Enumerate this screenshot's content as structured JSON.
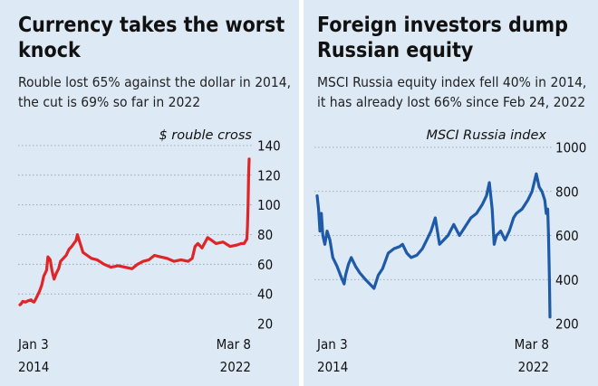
{
  "left": {
    "title": "Currency takes the worst knock",
    "subtitle": "Rouble lost 65% against the dollar in 2014, the cut is 69% so far in 2022"
  },
  "right": {
    "title": "Foreign investors dump Russian equity",
    "subtitle": "MSCI Russia equity index fell 40% in 2014, it has already lost 66% since Feb 24, 2022"
  },
  "colors": {
    "panel_bg": "#dde9f5",
    "rouble_line": "#e02527",
    "msci_line": "#1e5aa8",
    "grid": "#8a9aaa"
  },
  "chart_data": [
    {
      "type": "line",
      "ylabel": "$ rouble cross",
      "y_axis": "right",
      "ylim": [
        20,
        140
      ],
      "yticks": [
        20,
        40,
        60,
        80,
        100,
        120,
        140
      ],
      "x_tick_labels": [
        [
          "Jan 3",
          "2014"
        ],
        [
          "Mar 8",
          "2022"
        ]
      ],
      "x": [
        2014.0,
        2014.05,
        2014.1,
        2014.2,
        2014.3,
        2014.4,
        2014.45,
        2014.5,
        2014.55,
        2014.6,
        2014.7,
        2014.78,
        2014.85,
        2014.95,
        2015.0,
        2015.08,
        2015.15,
        2015.22,
        2015.3,
        2015.38,
        2015.45,
        2015.55,
        2015.65,
        2015.75,
        2015.85,
        2016.0,
        2016.05,
        2016.15,
        2016.25,
        2016.4,
        2016.55,
        2016.75,
        2017.0,
        2017.25,
        2017.5,
        2017.75,
        2018.0,
        2018.2,
        2018.4,
        2018.6,
        2018.8,
        2019.0,
        2019.25,
        2019.5,
        2019.75,
        2020.0,
        2020.15,
        2020.25,
        2020.35,
        2020.5,
        2020.7,
        2020.85,
        2021.0,
        2021.25,
        2021.5,
        2021.75,
        2021.9,
        2022.0,
        2022.1,
        2022.12,
        2022.14,
        2022.16,
        2022.18
      ],
      "series": [
        {
          "values": [
            32.7,
            33.5,
            35,
            34.5,
            35.5,
            36,
            35,
            34.5,
            36,
            38,
            42,
            46,
            52,
            56,
            65,
            63,
            55,
            50,
            54,
            57,
            62,
            64,
            66,
            70,
            72,
            76,
            80,
            74,
            68,
            66,
            64,
            63,
            60,
            58,
            59,
            58,
            57,
            60,
            62,
            63,
            66,
            65,
            64,
            62,
            63,
            62,
            64,
            72,
            74,
            71,
            78,
            76,
            74,
            75,
            72,
            73,
            74,
            74,
            77,
            85,
            100,
            120,
            131
          ]
        }
      ]
    },
    {
      "type": "line",
      "ylabel": "MSCI Russia index",
      "y_axis": "right",
      "ylim": [
        200,
        1000
      ],
      "yticks": [
        200,
        400,
        600,
        800,
        1000
      ],
      "x_tick_labels": [
        [
          "Jan 3",
          "2014"
        ],
        [
          "Mar 8",
          "2022"
        ]
      ],
      "x": [
        2014.0,
        2014.05,
        2014.1,
        2014.15,
        2014.2,
        2014.27,
        2014.35,
        2014.45,
        2014.55,
        2014.7,
        2014.85,
        2014.95,
        2015.0,
        2015.1,
        2015.2,
        2015.35,
        2015.5,
        2015.7,
        2015.85,
        2016.0,
        2016.15,
        2016.3,
        2016.5,
        2016.7,
        2016.9,
        2017.0,
        2017.15,
        2017.3,
        2017.5,
        2017.7,
        2017.85,
        2018.0,
        2018.15,
        2018.3,
        2018.45,
        2018.6,
        2018.8,
        2019.0,
        2019.2,
        2019.4,
        2019.6,
        2019.8,
        2019.95,
        2020.05,
        2020.15,
        2020.22,
        2020.3,
        2020.45,
        2020.6,
        2020.75,
        2020.9,
        2021.0,
        2021.2,
        2021.4,
        2021.55,
        2021.7,
        2021.8,
        2021.9,
        2022.0,
        2022.05,
        2022.1,
        2022.13,
        2022.16,
        2022.18
      ],
      "series": [
        {
          "values": [
            780,
            720,
            620,
            700,
            600,
            560,
            620,
            580,
            500,
            460,
            410,
            380,
            420,
            470,
            500,
            460,
            430,
            400,
            380,
            360,
            420,
            450,
            520,
            540,
            550,
            560,
            520,
            500,
            510,
            540,
            580,
            620,
            680,
            560,
            580,
            600,
            650,
            600,
            640,
            680,
            700,
            740,
            780,
            840,
            720,
            560,
            600,
            620,
            580,
            620,
            680,
            700,
            720,
            760,
            800,
            880,
            820,
            800,
            760,
            700,
            720,
            600,
            400,
            230
          ]
        }
      ]
    }
  ]
}
